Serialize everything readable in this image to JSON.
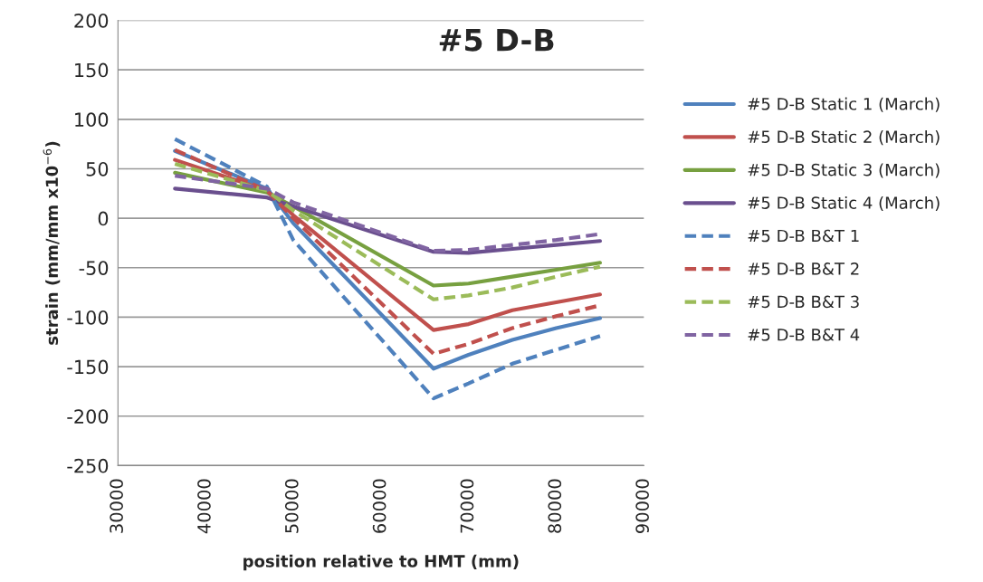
{
  "chart_data": {
    "type": "line",
    "title": "#5 D-B",
    "xlabel": "position relative to HMT (mm)",
    "ylabel": "strain (mm/mm x10$^{−6}$)",
    "x": [
      36500,
      47000,
      50000,
      66000,
      70000,
      75000,
      80000,
      85000
    ],
    "xlim": [
      30000,
      90000
    ],
    "xticks": [
      30000,
      40000,
      50000,
      60000,
      70000,
      80000,
      90000
    ],
    "ylim": [
      -250,
      200
    ],
    "yticks": [
      -250,
      -200,
      -150,
      -100,
      -50,
      0,
      50,
      100,
      150,
      200
    ],
    "grid": "y",
    "legend": "right",
    "series": [
      {
        "name": "#5 D-B Static 1 (March)",
        "color": "#4f81bd",
        "line_style": "solid",
        "values": [
          68,
          30,
          -5,
          -152,
          -138,
          -123,
          -111,
          -101
        ]
      },
      {
        "name": "#5 D-B Static 2 (March)",
        "color": "#c0504d",
        "line_style": "solid",
        "values": [
          59,
          28,
          3,
          -113,
          -107,
          -93,
          -85,
          -77
        ]
      },
      {
        "name": "#5 D-B Static 3 (March)",
        "color": "#77a040",
        "line_style": "solid",
        "values": [
          46,
          26,
          12,
          -68,
          -66,
          -59,
          -52,
          -45
        ]
      },
      {
        "name": "#5 D-B Static 4 (March)",
        "color": "#6a4f8e",
        "line_style": "solid",
        "values": [
          30,
          21,
          12,
          -34,
          -35,
          -31,
          -27,
          -23
        ]
      },
      {
        "name": "#5 D-B B&T 1",
        "color": "#4f81bd",
        "line_style": "dashed",
        "values": [
          80,
          32,
          -22,
          -182,
          -167,
          -147,
          -133,
          -119
        ]
      },
      {
        "name": "#5 D-B B&T 2",
        "color": "#c0504d",
        "line_style": "dashed",
        "values": [
          69,
          28,
          0,
          -137,
          -127,
          -111,
          -99,
          -88
        ]
      },
      {
        "name": "#5 D-B B&T 3",
        "color": "#9bbb59",
        "line_style": "dashed",
        "values": [
          55,
          28,
          8,
          -82,
          -78,
          -70,
          -59,
          -49
        ]
      },
      {
        "name": "#5 D-B B&T 4",
        "color": "#8064a2",
        "line_style": "dashed",
        "values": [
          43,
          30,
          16,
          -33,
          -32,
          -27,
          -22,
          -16
        ]
      }
    ]
  }
}
